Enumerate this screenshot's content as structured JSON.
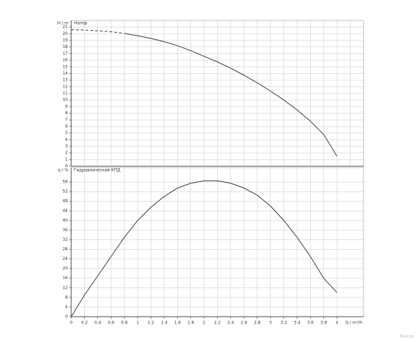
{
  "chart_data": [
    {
      "type": "line",
      "title": "Напор",
      "y_label": "H / m",
      "x": [
        0,
        0.2,
        0.4,
        0.6,
        0.8,
        1.0,
        1.2,
        1.4,
        1.6,
        1.8,
        2.0,
        2.2,
        2.4,
        2.6,
        2.8,
        3.0,
        3.2,
        3.4,
        3.6,
        3.8,
        4.0
      ],
      "series": [
        {
          "color": "#333333",
          "dashed": true,
          "values": [
            20.6,
            20.55,
            20.45,
            20.3,
            20.05,
            null,
            null,
            null,
            null,
            null,
            null,
            null,
            null,
            null,
            null,
            null,
            null,
            null,
            null,
            null,
            null
          ]
        },
        {
          "color": "#333333",
          "dashed": false,
          "values": [
            null,
            null,
            null,
            null,
            20.05,
            19.7,
            19.3,
            18.8,
            18.2,
            17.45,
            16.6,
            15.75,
            14.8,
            13.75,
            12.6,
            11.35,
            10.0,
            8.5,
            6.8,
            4.8,
            1.5
          ]
        }
      ],
      "xlim": [
        0,
        4.4
      ],
      "xticks": [
        0,
        0.2,
        0.4,
        0.6,
        0.8,
        1,
        1.2,
        1.4,
        1.6,
        1.8,
        2,
        2.2,
        2.4,
        2.6,
        2.8,
        3,
        3.2,
        3.4,
        3.6,
        3.8,
        4,
        4.2,
        4.4
      ],
      "ylim": [
        0,
        22
      ],
      "yticks": [
        0,
        1,
        2,
        3,
        4,
        5,
        6,
        7,
        8,
        9,
        10,
        11,
        12,
        13,
        14,
        15,
        16,
        17,
        18,
        19,
        20,
        21
      ],
      "grid": true
    },
    {
      "type": "line",
      "title": "Гидравлический КПД",
      "y_label": "η / %",
      "x_label": "Q / m³/h",
      "watermark": "Вилор",
      "x": [
        0,
        0.2,
        0.4,
        0.6,
        0.8,
        1.0,
        1.2,
        1.4,
        1.6,
        1.8,
        2.0,
        2.2,
        2.4,
        2.6,
        2.8,
        3.0,
        3.2,
        3.4,
        3.6,
        3.8,
        4.0
      ],
      "series": [
        {
          "color": "#333333",
          "dashed": false,
          "values": [
            0,
            9,
            17,
            25,
            33,
            40,
            45.5,
            50,
            53.5,
            55.5,
            56.5,
            56.5,
            55.5,
            53.5,
            50.5,
            46,
            40,
            33,
            25,
            16,
            10
          ]
        }
      ],
      "xlim": [
        0,
        4.4
      ],
      "xticks": [
        0,
        0.2,
        0.4,
        0.6,
        0.8,
        1,
        1.2,
        1.4,
        1.6,
        1.8,
        2,
        2.2,
        2.4,
        2.6,
        2.8,
        3,
        3.2,
        3.4,
        3.6,
        3.8,
        4
      ],
      "ylim": [
        0,
        62
      ],
      "yticks": [
        0,
        4,
        8,
        12,
        16,
        20,
        24,
        28,
        32,
        36,
        40,
        44,
        48,
        52,
        56
      ],
      "grid": true
    }
  ]
}
